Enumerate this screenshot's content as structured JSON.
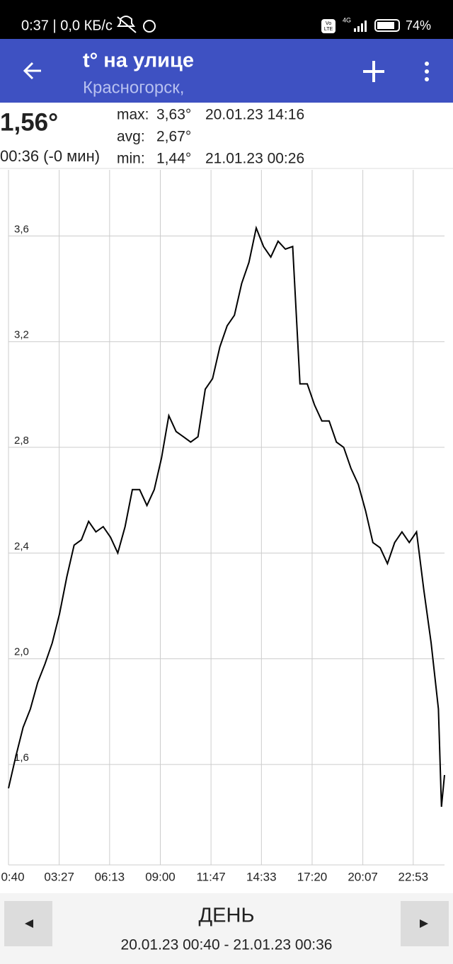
{
  "status_bar": {
    "left": "0:37 | 0,0 КБ/с",
    "volte": [
      "Vo",
      "LTE"
    ],
    "network": "4G",
    "battery": "74%"
  },
  "app_bar": {
    "title": "t° на улице",
    "subtitle": "Красногорск,"
  },
  "current": {
    "value": "1,56°",
    "time": "00:36 (-0 мин)"
  },
  "stats": [
    {
      "label": "max:",
      "value": "3,63°",
      "time": "20.01.23 14:16"
    },
    {
      "label": "avg:",
      "value": "2,67°"
    },
    {
      "label": "min:",
      "value": "1,44°",
      "time": "21.01.23 00:26"
    }
  ],
  "chart_data": {
    "type": "line",
    "color": "#000000",
    "grid": true,
    "x": [
      "0:40",
      "01:04",
      "01:28",
      "01:52",
      "02:16",
      "02:40",
      "03:04",
      "03:28",
      "03:52",
      "04:16",
      "04:40",
      "05:04",
      "05:28",
      "05:52",
      "06:16",
      "06:40",
      "07:04",
      "07:28",
      "07:52",
      "08:16",
      "08:40",
      "09:04",
      "09:28",
      "09:52",
      "10:16",
      "10:40",
      "11:04",
      "11:28",
      "11:52",
      "12:16",
      "12:40",
      "13:04",
      "13:28",
      "13:52",
      "14:16",
      "14:40",
      "15:04",
      "15:28",
      "15:52",
      "16:16",
      "16:40",
      "17:04",
      "17:28",
      "17:52",
      "18:16",
      "18:40",
      "19:04",
      "19:28",
      "19:52",
      "20:16",
      "20:40",
      "21:04",
      "21:28",
      "21:52",
      "22:16",
      "22:40",
      "23:04",
      "23:28",
      "23:52",
      "00:16",
      "00:26",
      "00:36"
    ],
    "values": [
      1.51,
      1.63,
      1.74,
      1.81,
      1.91,
      1.98,
      2.06,
      2.17,
      2.31,
      2.43,
      2.45,
      2.52,
      2.48,
      2.5,
      2.46,
      2.4,
      2.5,
      2.64,
      2.64,
      2.58,
      2.64,
      2.76,
      2.92,
      2.86,
      2.84,
      2.82,
      2.84,
      3.02,
      3.06,
      3.18,
      3.26,
      3.3,
      3.42,
      3.5,
      3.63,
      3.56,
      3.52,
      3.58,
      3.55,
      3.56,
      3.04,
      3.04,
      2.96,
      2.9,
      2.9,
      2.82,
      2.8,
      2.72,
      2.66,
      2.56,
      2.44,
      2.42,
      2.36,
      2.44,
      2.48,
      2.44,
      2.48,
      2.26,
      2.06,
      1.81,
      1.44,
      1.56
    ],
    "xlim": [
      "0:40",
      "00:36"
    ],
    "xticks": [
      "0:40",
      "03:27",
      "06:13",
      "09:00",
      "11:47",
      "14:33",
      "17:20",
      "20:07",
      "22:53"
    ],
    "ylim": [
      1.22,
      3.85
    ],
    "yticks": [
      {
        "value": 1.6,
        "label": "1,6"
      },
      {
        "value": 2.0,
        "label": "2,0"
      },
      {
        "value": 2.4,
        "label": "2,4"
      },
      {
        "value": 2.8,
        "label": "2,8"
      },
      {
        "value": 3.2,
        "label": "3,2"
      },
      {
        "value": 3.6,
        "label": "3,6"
      }
    ]
  },
  "bottom_bar": {
    "period": "ДЕНЬ",
    "range": "20.01.23 00:40 - 21.01.23 00:36"
  }
}
